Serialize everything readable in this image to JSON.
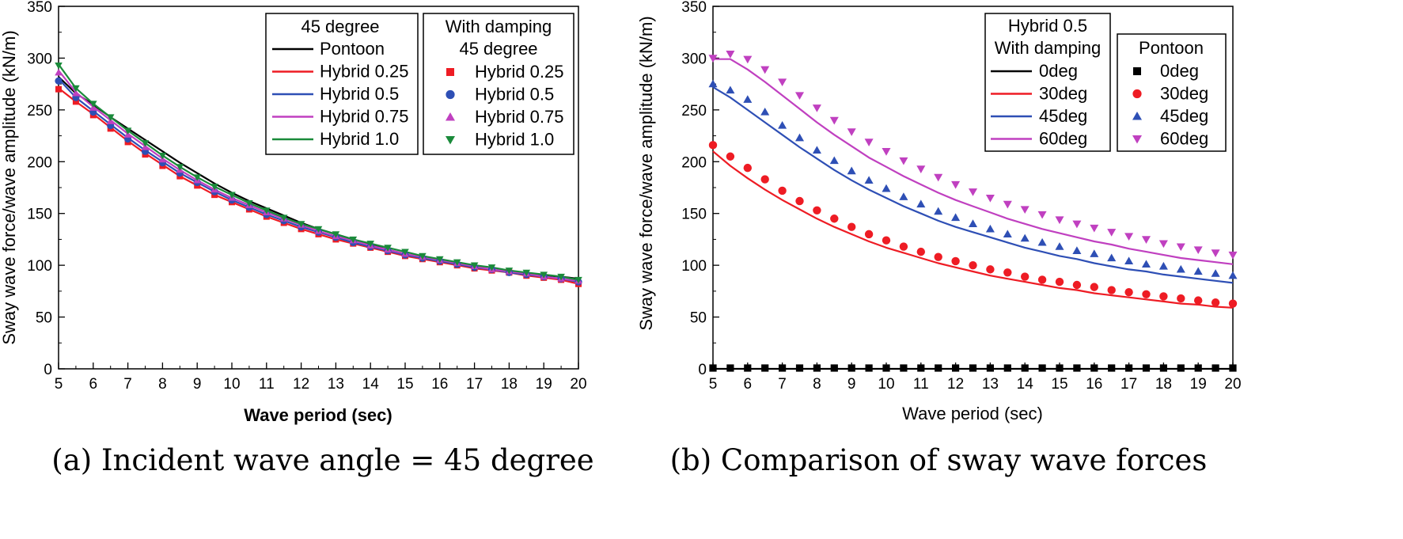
{
  "chart_data": [
    {
      "type": "line",
      "id": "a",
      "caption": "(a) Incident wave angle = 45 degree",
      "xlabel": "Wave period (sec)",
      "ylabel": "Sway wave force/wave amplitude (kN/m)",
      "xlim": [
        5,
        20
      ],
      "ylim": [
        0,
        350
      ],
      "xticks": [
        "5",
        "6",
        "7",
        "8",
        "9",
        "10",
        "11",
        "12",
        "13",
        "14",
        "15",
        "16",
        "17",
        "18",
        "19",
        "20"
      ],
      "yticks": [
        "0",
        "50",
        "100",
        "150",
        "200",
        "250",
        "300",
        "350"
      ],
      "x": [
        5,
        5.5,
        6,
        6.5,
        7,
        7.5,
        8,
        8.5,
        9,
        9.5,
        10,
        10.5,
        11,
        11.5,
        12,
        12.5,
        13,
        13.5,
        14,
        14.5,
        15,
        15.5,
        16,
        16.5,
        17,
        17.5,
        18,
        18.5,
        19,
        19.5,
        20
      ],
      "series": [
        {
          "name": "Pontoon",
          "style": "line",
          "color": "#000000",
          "values": [
            282,
            266,
            255,
            243,
            232,
            221,
            210,
            199,
            189,
            179,
            170,
            162,
            155,
            148,
            141,
            135,
            130,
            125,
            120,
            115,
            111,
            107,
            104,
            101,
            98,
            96,
            94,
            92,
            90,
            89,
            87
          ]
        },
        {
          "name": "Hybrid 0.25",
          "style": "line",
          "color": "#ee1c24",
          "values": [
            271,
            258,
            246,
            233,
            220,
            208,
            197,
            186,
            177,
            168,
            161,
            154,
            147,
            141,
            135,
            130,
            125,
            121,
            117,
            113,
            109,
            106,
            103,
            100,
            97,
            95,
            93,
            90,
            88,
            86,
            82
          ]
        },
        {
          "name": "Hybrid 0.5",
          "style": "line",
          "color": "#2e4fb5",
          "values": [
            280,
            262,
            249,
            236,
            223,
            211,
            200,
            189,
            180,
            171,
            163,
            156,
            149,
            143,
            137,
            132,
            127,
            122,
            118,
            114,
            110,
            107,
            104,
            101,
            98,
            96,
            93,
            91,
            89,
            87,
            84
          ]
        },
        {
          "name": "Hybrid 0.75",
          "style": "line",
          "color": "#c040c0",
          "values": [
            288,
            267,
            253,
            240,
            227,
            215,
            203,
            192,
            182,
            173,
            165,
            158,
            151,
            145,
            139,
            133,
            128,
            124,
            119,
            115,
            111,
            108,
            105,
            102,
            99,
            96,
            94,
            92,
            89,
            87,
            85
          ]
        },
        {
          "name": "Hybrid 1.0",
          "style": "line",
          "color": "#1a8a3a",
          "values": [
            294,
            271,
            256,
            243,
            230,
            218,
            206,
            195,
            185,
            176,
            168,
            160,
            153,
            146,
            140,
            135,
            130,
            125,
            121,
            117,
            113,
            109,
            106,
            103,
            100,
            98,
            95,
            93,
            91,
            89,
            86
          ]
        },
        {
          "name": "Hybrid 0.25",
          "style": "marker",
          "marker": "square",
          "color": "#ee1c24",
          "values": [
            270,
            258,
            245,
            232,
            219,
            207,
            196,
            186,
            177,
            168,
            161,
            154,
            147,
            141,
            135,
            130,
            125,
            121,
            117,
            113,
            109,
            106,
            103,
            100,
            97,
            95,
            93,
            90,
            88,
            86,
            82
          ]
        },
        {
          "name": "Hybrid 0.5",
          "style": "marker",
          "marker": "circle",
          "color": "#2e4fb5",
          "values": [
            278,
            262,
            248,
            235,
            222,
            210,
            199,
            189,
            180,
            171,
            163,
            156,
            149,
            143,
            137,
            132,
            127,
            122,
            118,
            114,
            110,
            107,
            104,
            101,
            98,
            96,
            93,
            91,
            89,
            87,
            84
          ]
        },
        {
          "name": "Hybrid 0.75",
          "style": "marker",
          "marker": "triangle-up",
          "color": "#c040c0",
          "values": [
            286,
            266,
            252,
            239,
            226,
            214,
            202,
            192,
            182,
            173,
            165,
            158,
            151,
            145,
            139,
            133,
            128,
            124,
            119,
            115,
            111,
            108,
            105,
            102,
            99,
            96,
            94,
            92,
            89,
            87,
            85
          ]
        },
        {
          "name": "Hybrid 1.0",
          "style": "marker",
          "marker": "triangle-down",
          "color": "#1a8a3a",
          "values": [
            293,
            271,
            256,
            243,
            230,
            218,
            206,
            195,
            185,
            176,
            168,
            160,
            153,
            146,
            140,
            135,
            130,
            125,
            121,
            117,
            113,
            109,
            106,
            103,
            100,
            98,
            95,
            93,
            91,
            89,
            86
          ]
        }
      ],
      "legends": [
        {
          "placement": "top-center",
          "lines": [
            "45 degree"
          ],
          "entries": [
            "Pontoon",
            "Hybrid 0.25",
            "Hybrid 0.5",
            "Hybrid 0.75",
            "Hybrid 1.0"
          ]
        },
        {
          "placement": "top-right",
          "lines": [
            "With damping",
            "45 degree"
          ],
          "entries": [
            "Hybrid 0.25",
            "Hybrid 0.5",
            "Hybrid 0.75",
            "Hybrid 1.0"
          ]
        }
      ]
    },
    {
      "type": "line",
      "id": "b",
      "caption": "(b) Comparison of sway wave forces",
      "xlabel": "Wave period (sec)",
      "ylabel": "Sway wave force/wave amplitude (kN/m)",
      "xlim": [
        5,
        20
      ],
      "ylim": [
        0,
        350
      ],
      "xticks": [
        "5",
        "6",
        "7",
        "8",
        "9",
        "10",
        "11",
        "12",
        "13",
        "14",
        "15",
        "16",
        "17",
        "18",
        "19",
        "20"
      ],
      "yticks": [
        "0",
        "50",
        "100",
        "150",
        "200",
        "250",
        "300",
        "350"
      ],
      "x": [
        5,
        5.5,
        6,
        6.5,
        7,
        7.5,
        8,
        8.5,
        9,
        9.5,
        10,
        10.5,
        11,
        11.5,
        12,
        12.5,
        13,
        13.5,
        14,
        14.5,
        15,
        15.5,
        16,
        16.5,
        17,
        17.5,
        18,
        18.5,
        19,
        19.5,
        20
      ],
      "series": [
        {
          "name": "0deg",
          "style": "line",
          "color": "#000000",
          "values": [
            0,
            0,
            0,
            0,
            0,
            0,
            0,
            0,
            0,
            0,
            0,
            0,
            0,
            0,
            0,
            0,
            0,
            0,
            0,
            0,
            0,
            0,
            0,
            0,
            0,
            0,
            0,
            0,
            0,
            0,
            0
          ]
        },
        {
          "name": "30deg",
          "style": "line",
          "color": "#ee1c24",
          "values": [
            210,
            196,
            184,
            173,
            163,
            154,
            145,
            137,
            130,
            123,
            117,
            112,
            107,
            102,
            98,
            94,
            90,
            87,
            84,
            81,
            78,
            76,
            73,
            71,
            69,
            67,
            65,
            63,
            62,
            60,
            59
          ]
        },
        {
          "name": "45deg",
          "style": "line",
          "color": "#2e4fb5",
          "values": [
            272,
            262,
            250,
            238,
            226,
            214,
            203,
            192,
            182,
            173,
            165,
            157,
            150,
            143,
            137,
            132,
            127,
            122,
            117,
            113,
            109,
            106,
            102,
            99,
            96,
            94,
            91,
            89,
            87,
            85,
            83
          ]
        },
        {
          "name": "60deg",
          "style": "line",
          "color": "#c040c0",
          "values": [
            299,
            299,
            289,
            277,
            264,
            251,
            238,
            226,
            215,
            204,
            195,
            186,
            178,
            170,
            163,
            157,
            151,
            145,
            140,
            135,
            131,
            127,
            123,
            120,
            116,
            113,
            110,
            107,
            105,
            103,
            101
          ]
        },
        {
          "name": "0deg",
          "style": "marker",
          "marker": "square",
          "color": "#000000",
          "values": [
            0,
            0,
            0,
            0,
            0,
            0,
            0,
            0,
            0,
            0,
            0,
            0,
            0,
            0,
            0,
            0,
            0,
            0,
            0,
            0,
            0,
            0,
            0,
            0,
            0,
            0,
            0,
            0,
            0,
            0,
            0
          ]
        },
        {
          "name": "30deg",
          "style": "marker",
          "marker": "circle",
          "color": "#ee1c24",
          "values": [
            216,
            205,
            194,
            183,
            172,
            162,
            153,
            145,
            137,
            130,
            124,
            118,
            113,
            108,
            104,
            100,
            96,
            93,
            89,
            86,
            84,
            81,
            79,
            76,
            74,
            72,
            70,
            68,
            66,
            64,
            63
          ]
        },
        {
          "name": "45deg",
          "style": "marker",
          "marker": "triangle-up",
          "color": "#2e4fb5",
          "values": [
            275,
            269,
            260,
            248,
            235,
            223,
            211,
            201,
            191,
            182,
            174,
            166,
            159,
            152,
            146,
            140,
            135,
            130,
            126,
            122,
            118,
            114,
            111,
            107,
            104,
            101,
            99,
            96,
            94,
            92,
            90
          ]
        },
        {
          "name": "60deg",
          "style": "marker",
          "marker": "triangle-down",
          "color": "#c040c0",
          "values": [
            300,
            304,
            299,
            289,
            277,
            264,
            252,
            240,
            229,
            219,
            210,
            201,
            193,
            185,
            178,
            171,
            165,
            159,
            154,
            149,
            144,
            140,
            136,
            132,
            128,
            125,
            121,
            118,
            115,
            112,
            110
          ]
        }
      ],
      "legends": [
        {
          "placement": "top-center",
          "lines": [
            "Hybrid 0.5",
            "With damping"
          ],
          "entries": [
            "0deg",
            "30deg",
            "45deg",
            "60deg"
          ]
        },
        {
          "placement": "top-right",
          "lines": [
            "Pontoon"
          ],
          "entries": [
            "0deg",
            "30deg",
            "45deg",
            "60deg"
          ]
        }
      ]
    }
  ]
}
